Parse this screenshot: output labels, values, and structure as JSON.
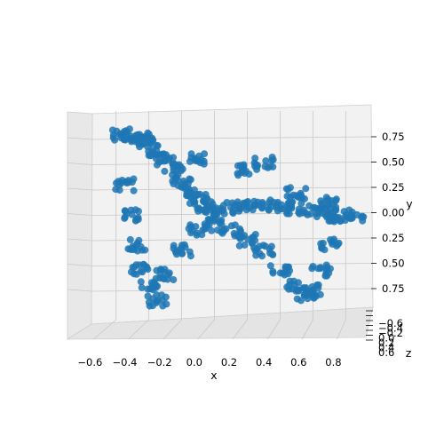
{
  "chart_data": {
    "type": "scatter",
    "projection": "3d",
    "title": "",
    "xlabel": "x",
    "ylabel": "y",
    "zlabel": "z",
    "grid": true,
    "x_ticks": [
      "−0.6",
      "−0.4",
      "−0.2",
      "0.0",
      "0.2",
      "0.4",
      "0.6",
      "0.8"
    ],
    "y_ticks": [
      "0.75",
      "0.50",
      "0.25",
      "0.00",
      "0.25",
      "0.50",
      "0.75"
    ],
    "z_ticks": [
      "−0.6",
      "−0.4",
      "−0.2",
      "0.0",
      "0.2",
      "0.4",
      "0.6"
    ],
    "xlim": [
      -0.75,
      0.95
    ],
    "ylim": [
      -0.95,
      0.95
    ],
    "point_color": "#1f77b4",
    "series": [
      {
        "name": "",
        "description_points_x_y": [
          [
            -0.57,
            0.8
          ],
          [
            -0.5,
            0.78
          ],
          [
            -0.45,
            0.76
          ],
          [
            -0.4,
            0.72
          ],
          [
            -0.35,
            0.65
          ],
          [
            -0.3,
            0.55
          ],
          [
            -0.25,
            0.45
          ],
          [
            -0.2,
            0.35
          ],
          [
            -0.15,
            0.25
          ],
          [
            -0.1,
            0.15
          ],
          [
            -0.05,
            0.08
          ],
          [
            0.0,
            0.05
          ],
          [
            0.1,
            0.07
          ],
          [
            0.2,
            0.08
          ],
          [
            0.3,
            0.1
          ],
          [
            0.4,
            0.09
          ],
          [
            0.5,
            0.07
          ],
          [
            0.6,
            0.04
          ],
          [
            0.7,
            0.02
          ],
          [
            0.75,
            -0.02
          ],
          [
            -0.55,
            0.3
          ],
          [
            -0.5,
            0.0
          ],
          [
            -0.48,
            -0.3
          ],
          [
            -0.45,
            -0.55
          ],
          [
            -0.4,
            -0.7
          ],
          [
            -0.35,
            -0.85
          ],
          [
            -0.3,
            -0.6
          ],
          [
            -0.2,
            -0.35
          ],
          [
            -0.1,
            -0.15
          ],
          [
            0.0,
            -0.1
          ],
          [
            0.1,
            -0.15
          ],
          [
            0.2,
            -0.25
          ],
          [
            0.3,
            -0.35
          ],
          [
            0.4,
            -0.55
          ],
          [
            0.5,
            -0.7
          ],
          [
            0.55,
            -0.8
          ],
          [
            0.6,
            -0.75
          ],
          [
            0.65,
            -0.55
          ],
          [
            0.7,
            -0.3
          ],
          [
            0.2,
            0.45
          ],
          [
            0.3,
            0.52
          ],
          [
            0.5,
            0.22
          ],
          [
            0.7,
            0.12
          ],
          [
            0.85,
            0.0
          ],
          [
            -0.1,
            0.55
          ]
        ]
      }
    ]
  }
}
